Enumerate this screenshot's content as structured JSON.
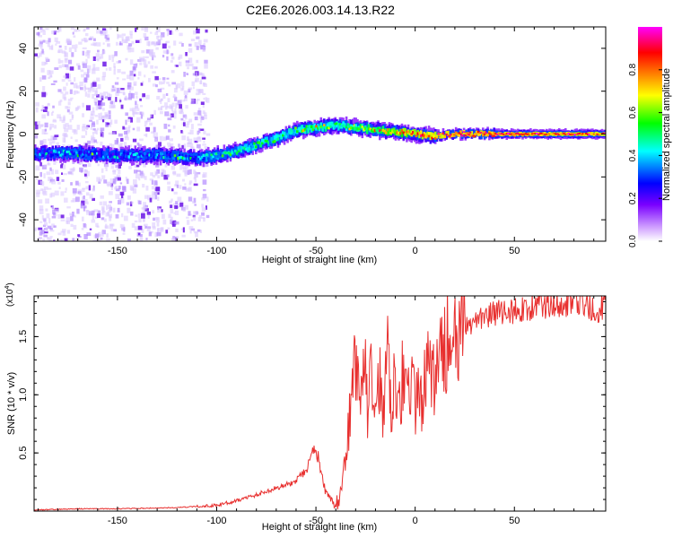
{
  "title": "C2E6.2026.003.14.13.R22",
  "chart_data": [
    {
      "type": "heatmap",
      "name": "spectrogram",
      "xlabel": "Height of straight line (km)",
      "ylabel": "Frequency (Hz)",
      "xlim": [
        -192,
        96
      ],
      "ylim": [
        -50,
        50
      ],
      "xticks": [
        -150,
        -100,
        -50,
        0,
        50
      ],
      "xtick_labels": [
        "-150",
        "-100",
        "-50",
        "0",
        "50"
      ],
      "yticks": [
        -40,
        -20,
        0,
        20,
        40
      ],
      "ytick_labels": [
        "-40",
        "-20",
        "0",
        "20",
        "40"
      ],
      "ridge": {
        "x": [
          -190,
          -170,
          -150,
          -130,
          -110,
          -100,
          -90,
          -80,
          -70,
          -60,
          -50,
          -40,
          -30,
          -20,
          -10,
          0,
          10,
          20,
          40,
          60,
          80,
          95
        ],
        "freq": [
          -9,
          -9,
          -10,
          -10,
          -11,
          -10,
          -8,
          -5,
          -2,
          2,
          3,
          4,
          3,
          2,
          1,
          0,
          -1,
          0,
          0,
          0,
          0,
          0
        ],
        "amplitude": [
          0.3,
          0.35,
          0.3,
          0.35,
          0.35,
          0.4,
          0.45,
          0.45,
          0.45,
          0.5,
          0.5,
          0.5,
          0.55,
          0.6,
          0.7,
          0.75,
          0.8,
          0.85,
          0.85,
          0.8,
          0.8,
          0.8
        ]
      },
      "noise_region_x": [
        -192,
        -105
      ],
      "colorbar": {
        "label": "Normalized spectral amplitude",
        "range": [
          0,
          1
        ],
        "ticks": [
          0.0,
          0.2,
          0.4,
          0.6,
          0.8
        ],
        "tick_labels": [
          "0.0",
          "0.2",
          "0.4",
          "0.6",
          "0.8"
        ],
        "colors": [
          "#ffffff",
          "#cc99ff",
          "#7a00ff",
          "#0000ff",
          "#00ffff",
          "#00ff00",
          "#ffff00",
          "#ff8000",
          "#ff0000",
          "#ff00ff"
        ]
      }
    },
    {
      "type": "line",
      "name": "snr",
      "xlabel": "Height of straight line (km)",
      "ylabel": "SNR (10 * v/v)",
      "y_multiplier": "(x10",
      "y_multiplier_exp": "4",
      "y_multiplier_close": ")",
      "xlim": [
        -192,
        96
      ],
      "ylim": [
        0,
        1.85
      ],
      "xticks": [
        -150,
        -100,
        -50,
        0,
        50
      ],
      "xtick_labels": [
        "-150",
        "-100",
        "-50",
        "0",
        "50"
      ],
      "yticks": [
        0.5,
        1.0,
        1.5
      ],
      "ytick_labels": [
        "0.5",
        "1.0",
        "1.5"
      ],
      "color": "#e8302f",
      "series": {
        "x": [
          -192,
          -170,
          -150,
          -120,
          -100,
          -90,
          -80,
          -70,
          -60,
          -55,
          -50,
          -47,
          -45,
          -42,
          -40,
          -37,
          -35,
          -32,
          -30,
          -28,
          -26,
          -24,
          -22,
          -20,
          -18,
          -16,
          -14,
          -12,
          -10,
          -8,
          -6,
          -4,
          -2,
          0,
          2,
          4,
          6,
          8,
          10,
          12,
          14,
          16,
          18,
          20,
          22,
          25,
          30,
          40,
          50,
          60,
          70,
          80,
          88,
          90,
          92,
          94,
          96
        ],
        "y": [
          0.01,
          0.02,
          0.02,
          0.03,
          0.05,
          0.09,
          0.14,
          0.2,
          0.25,
          0.35,
          0.55,
          0.3,
          0.15,
          0.08,
          0.05,
          0.15,
          0.55,
          0.9,
          1.4,
          0.8,
          1.6,
          0.75,
          1.25,
          0.8,
          1.2,
          0.8,
          1.5,
          0.95,
          1.2,
          1.0,
          1.2,
          0.95,
          1.15,
          0.85,
          1.1,
          0.95,
          1.25,
          1.2,
          1.05,
          1.35,
          1.3,
          1.5,
          1.35,
          1.4,
          1.45,
          1.55,
          1.65,
          1.7,
          1.72,
          1.76,
          1.78,
          1.8,
          1.75,
          1.72,
          1.6,
          1.75,
          1.78
        ]
      }
    }
  ]
}
